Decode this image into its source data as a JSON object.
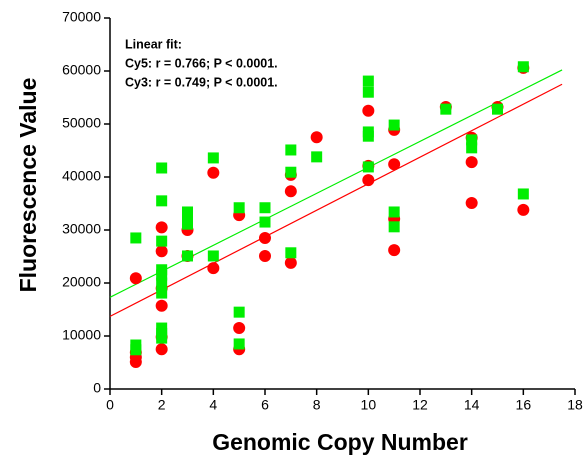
{
  "chart_data": {
    "type": "scatter",
    "xlabel": "Genomic Copy Number",
    "ylabel": "Fluorescence Value",
    "annotations": [
      "Linear fit:",
      "Cy5: r = 0.766; P < 0.0001.",
      "Cy3: r = 0.749; P < 0.0001."
    ],
    "xlim": [
      0,
      18
    ],
    "xticks": [
      0,
      2,
      4,
      6,
      8,
      10,
      12,
      14,
      16,
      18
    ],
    "ylim": [
      0,
      70000
    ],
    "yticks": [
      0,
      10000,
      20000,
      30000,
      40000,
      50000,
      60000,
      70000
    ],
    "series": [
      {
        "color": "#ff0000",
        "marker": "circle",
        "x": [
          1,
          1,
          1,
          1,
          2,
          2,
          2,
          2,
          2,
          2,
          3,
          3,
          4,
          4,
          5,
          5,
          5,
          6,
          6,
          7,
          7,
          7,
          8,
          10,
          10,
          10,
          11,
          11,
          11,
          11,
          13,
          14,
          14,
          14,
          15,
          16,
          16
        ],
        "values": [
          20900,
          6900,
          6000,
          5100,
          30500,
          26000,
          19000,
          15700,
          9800,
          7500,
          30000,
          25100,
          40800,
          22800,
          32800,
          11500,
          7500,
          28500,
          25100,
          37300,
          23800,
          40400,
          47500,
          52500,
          42100,
          39400,
          48900,
          32100,
          26200,
          42400,
          53200,
          42800,
          35100,
          47400,
          53200,
          60600,
          33800
        ]
      },
      {
        "color": "#00ee00",
        "marker": "square",
        "x": [
          1,
          1,
          1,
          2,
          2,
          2,
          2,
          2,
          2,
          2,
          2,
          2,
          2,
          3,
          3,
          3,
          3,
          4,
          4,
          5,
          5,
          5,
          6,
          6,
          7,
          7,
          7,
          8,
          10,
          10,
          10,
          10,
          10,
          11,
          11,
          11,
          13,
          14,
          14,
          15,
          16,
          16
        ],
        "values": [
          28500,
          8300,
          7400,
          41700,
          35500,
          27900,
          22500,
          21500,
          20000,
          18100,
          11500,
          10500,
          9600,
          33400,
          32100,
          31100,
          25100,
          43600,
          25100,
          34200,
          14500,
          8500,
          34200,
          31500,
          45100,
          40900,
          25700,
          43800,
          58100,
          56000,
          48500,
          47700,
          41900,
          49800,
          33400,
          30600,
          52800,
          47000,
          45500,
          52800,
          60800,
          36800
        ]
      }
    ],
    "fits": [
      {
        "color": "#00ee00",
        "x": [
          0,
          17.5
        ],
        "values": [
          17300,
          60200
        ]
      },
      {
        "color": "#ff0000",
        "x": [
          0,
          17.5
        ],
        "values": [
          13700,
          57500
        ]
      }
    ]
  }
}
